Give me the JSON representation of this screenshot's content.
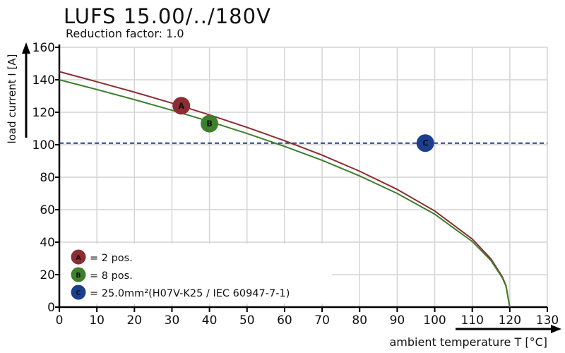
{
  "chart_data": {
    "type": "line",
    "title": "LUFS 15.00/../180V",
    "subtitle": "Reduction factor: 1.0",
    "xlabel": "ambient temperature T [°C]",
    "ylabel": "load current I [A]",
    "xlim": [
      0,
      130
    ],
    "ylim": [
      0,
      160
    ],
    "xticks": [
      0,
      10,
      20,
      30,
      40,
      50,
      60,
      70,
      80,
      90,
      100,
      110,
      120,
      130
    ],
    "yticks": [
      0,
      20,
      40,
      60,
      80,
      100,
      120,
      140,
      160
    ],
    "grid": true,
    "series": [
      {
        "marker": "A",
        "color": "#8b2d33",
        "x": [
          0,
          10,
          20,
          30,
          40,
          50,
          60,
          70,
          80,
          90,
          100,
          110,
          115,
          118,
          119,
          120
        ],
        "y": [
          145,
          138.8,
          132.4,
          125.6,
          118.4,
          110.7,
          102.5,
          93.6,
          83.7,
          72.5,
          59.2,
          41.9,
          29.6,
          18.7,
          13.2,
          0
        ]
      },
      {
        "marker": "B",
        "color": "#3e7f2c",
        "x": [
          0,
          10,
          20,
          30,
          40,
          50,
          60,
          70,
          80,
          90,
          100,
          110,
          115,
          118,
          119,
          120
        ],
        "y": [
          140,
          134.0,
          127.8,
          121.2,
          114.3,
          106.9,
          99.0,
          90.4,
          80.8,
          70.0,
          57.2,
          40.4,
          28.6,
          18.1,
          12.8,
          0
        ]
      }
    ],
    "reference_line": {
      "marker": "C",
      "y": 101,
      "color": "#1a3f8f",
      "style": "dashed"
    },
    "markers": [
      {
        "label": "A",
        "x": 32.5,
        "y": 124,
        "color": "#8b2d33"
      },
      {
        "label": "B",
        "x": 40,
        "y": 113,
        "color": "#3e7f2c"
      },
      {
        "label": "C",
        "x": 97.5,
        "y": 101,
        "color": "#1a3f8f"
      }
    ],
    "legend": {
      "placement": "bottom-left",
      "entries": [
        {
          "marker": "A",
          "text": "= 2 pos.",
          "color": "#8b2d33"
        },
        {
          "marker": "B",
          "text": "= 8 pos.",
          "color": "#3e7f2c"
        },
        {
          "marker": "C",
          "text": "= 25.0mm²(H07V-K25 / IEC 60947-7-1)",
          "color": "#1a3f8f"
        }
      ]
    }
  }
}
